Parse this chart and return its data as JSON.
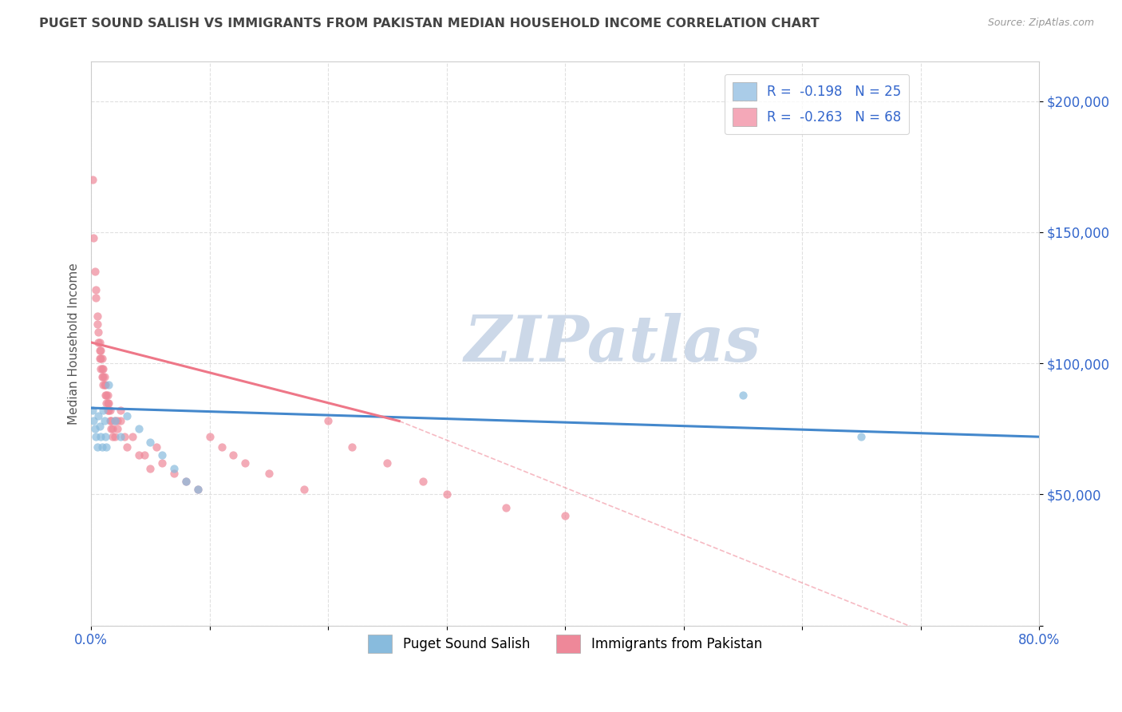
{
  "title": "PUGET SOUND SALISH VS IMMIGRANTS FROM PAKISTAN MEDIAN HOUSEHOLD INCOME CORRELATION CHART",
  "source_text": "Source: ZipAtlas.com",
  "ylabel": "Median Household Income",
  "watermark": "ZIPatlas",
  "legend_series": [
    {
      "label": "Puget Sound Salish",
      "color": "#aacce8",
      "R": -0.198,
      "N": 25
    },
    {
      "label": "Immigrants from Pakistan",
      "color": "#f4a8b8",
      "R": -0.263,
      "N": 68
    }
  ],
  "blue_scatter": [
    [
      0.001,
      82000
    ],
    [
      0.002,
      78000
    ],
    [
      0.003,
      75000
    ],
    [
      0.004,
      72000
    ],
    [
      0.005,
      68000
    ],
    [
      0.006,
      80000
    ],
    [
      0.007,
      76000
    ],
    [
      0.008,
      72000
    ],
    [
      0.009,
      68000
    ],
    [
      0.01,
      82000
    ],
    [
      0.011,
      78000
    ],
    [
      0.012,
      72000
    ],
    [
      0.013,
      68000
    ],
    [
      0.015,
      92000
    ],
    [
      0.02,
      78000
    ],
    [
      0.025,
      72000
    ],
    [
      0.03,
      80000
    ],
    [
      0.04,
      75000
    ],
    [
      0.05,
      70000
    ],
    [
      0.06,
      65000
    ],
    [
      0.07,
      60000
    ],
    [
      0.08,
      55000
    ],
    [
      0.09,
      52000
    ],
    [
      0.55,
      88000
    ],
    [
      0.65,
      72000
    ]
  ],
  "pink_scatter": [
    [
      0.001,
      170000
    ],
    [
      0.002,
      148000
    ],
    [
      0.003,
      135000
    ],
    [
      0.004,
      128000
    ],
    [
      0.004,
      125000
    ],
    [
      0.005,
      118000
    ],
    [
      0.005,
      115000
    ],
    [
      0.006,
      112000
    ],
    [
      0.006,
      108000
    ],
    [
      0.007,
      108000
    ],
    [
      0.007,
      105000
    ],
    [
      0.007,
      102000
    ],
    [
      0.008,
      105000
    ],
    [
      0.008,
      102000
    ],
    [
      0.008,
      98000
    ],
    [
      0.009,
      102000
    ],
    [
      0.009,
      98000
    ],
    [
      0.009,
      95000
    ],
    [
      0.01,
      98000
    ],
    [
      0.01,
      95000
    ],
    [
      0.01,
      92000
    ],
    [
      0.011,
      95000
    ],
    [
      0.011,
      92000
    ],
    [
      0.012,
      92000
    ],
    [
      0.012,
      88000
    ],
    [
      0.013,
      88000
    ],
    [
      0.013,
      85000
    ],
    [
      0.014,
      88000
    ],
    [
      0.014,
      85000
    ],
    [
      0.014,
      82000
    ],
    [
      0.015,
      85000
    ],
    [
      0.015,
      82000
    ],
    [
      0.016,
      82000
    ],
    [
      0.016,
      78000
    ],
    [
      0.017,
      78000
    ],
    [
      0.017,
      75000
    ],
    [
      0.018,
      75000
    ],
    [
      0.018,
      72000
    ],
    [
      0.02,
      78000
    ],
    [
      0.02,
      72000
    ],
    [
      0.022,
      78000
    ],
    [
      0.022,
      75000
    ],
    [
      0.025,
      82000
    ],
    [
      0.025,
      78000
    ],
    [
      0.028,
      72000
    ],
    [
      0.03,
      68000
    ],
    [
      0.035,
      72000
    ],
    [
      0.04,
      65000
    ],
    [
      0.045,
      65000
    ],
    [
      0.05,
      60000
    ],
    [
      0.055,
      68000
    ],
    [
      0.06,
      62000
    ],
    [
      0.07,
      58000
    ],
    [
      0.08,
      55000
    ],
    [
      0.09,
      52000
    ],
    [
      0.1,
      72000
    ],
    [
      0.11,
      68000
    ],
    [
      0.12,
      65000
    ],
    [
      0.13,
      62000
    ],
    [
      0.15,
      58000
    ],
    [
      0.18,
      52000
    ],
    [
      0.2,
      78000
    ],
    [
      0.22,
      68000
    ],
    [
      0.25,
      62000
    ],
    [
      0.28,
      55000
    ],
    [
      0.3,
      50000
    ],
    [
      0.35,
      45000
    ],
    [
      0.4,
      42000
    ]
  ],
  "blue_line": {
    "x": [
      0.0,
      0.8
    ],
    "y": [
      83000,
      72000
    ]
  },
  "pink_line_solid": {
    "x": [
      0.0,
      0.26
    ],
    "y": [
      108000,
      78000
    ]
  },
  "pink_line_dash": {
    "x": [
      0.26,
      0.8
    ],
    "y": [
      78000,
      -20000
    ]
  },
  "yticks": [
    0,
    50000,
    100000,
    150000,
    200000
  ],
  "ytick_labels": [
    "",
    "$50,000",
    "$100,000",
    "$150,000",
    "$200,000"
  ],
  "xlim": [
    0.0,
    0.8
  ],
  "ylim": [
    0,
    215000
  ],
  "title_color": "#444444",
  "source_color": "#999999",
  "axis_color": "#cccccc",
  "grid_color": "#dddddd",
  "blue_dot_color": "#88bbdd",
  "pink_dot_color": "#ee8899",
  "blue_line_color": "#4488cc",
  "pink_line_color": "#ee7788",
  "watermark_color": "#ccd8e8",
  "legend_text_color": "#3366cc",
  "xtick_positions": [
    0.0,
    0.1,
    0.2,
    0.3,
    0.4,
    0.5,
    0.6,
    0.7,
    0.8
  ],
  "xtick_labels": [
    "0.0%",
    "",
    "",
    "",
    "",
    "",
    "",
    "",
    "80.0%"
  ]
}
